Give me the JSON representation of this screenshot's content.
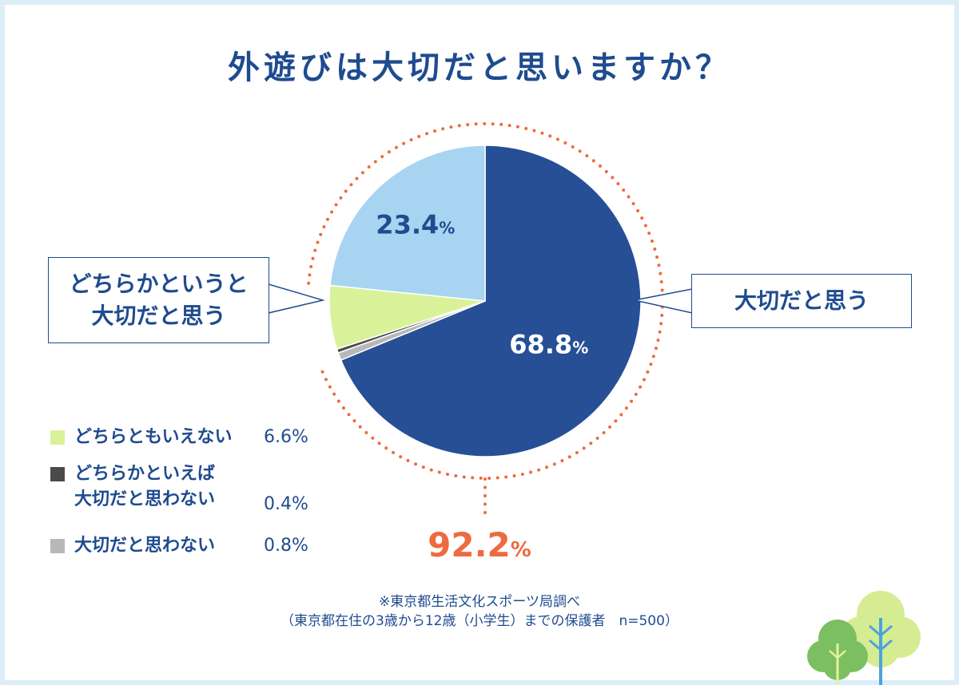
{
  "title": "外遊びは大切だと思いますか？",
  "callouts": {
    "left_line1": "どちらかというと",
    "left_line2": "大切だと思う",
    "right": "大切だと思う"
  },
  "total_label": "92.2",
  "percent_sign": "%",
  "colors": {
    "title": "#1f4b8f",
    "dotted_ring": "#ee6a3f",
    "total": "#ee6a3f"
  },
  "legend": [
    {
      "label": "どちらともいえない",
      "value": "6.6%",
      "color": "#d9f29a"
    },
    {
      "label_line1": "どちらかといえば",
      "label_line2": "大切だと思わない",
      "value": "0.4%",
      "color": "#4a4a4a"
    },
    {
      "label": "大切だと思わない",
      "value": "0.8%",
      "color": "#b8b8b8"
    }
  ],
  "source": {
    "line1": "※東京都生活文化スポーツ局調べ",
    "line2": "（東京都在住の3歳から12歳（小学生）までの保護者　n=500）"
  },
  "chart_data": {
    "type": "pie",
    "title": "外遊びは大切だと思いますか？",
    "slices": [
      {
        "label": "大切だと思う",
        "value": 68.8,
        "color": "#264f96",
        "data_label": "68.8"
      },
      {
        "label": "大切だと思わない",
        "value": 0.8,
        "color": "#b8b8b8",
        "data_label": ""
      },
      {
        "label": "どちらかといえば大切だと思わない",
        "value": 0.4,
        "color": "#4a4a4a",
        "data_label": ""
      },
      {
        "label": "どちらともいえない",
        "value": 6.6,
        "color": "#d9f29a",
        "data_label": ""
      },
      {
        "label": "どちらかというと大切だと思う",
        "value": 23.4,
        "color": "#a7d4f1",
        "data_label": "23.4"
      }
    ],
    "annotation": {
      "text": "92.2%",
      "covers": [
        "大切だと思う",
        "どちらかというと大切だと思う"
      ]
    }
  }
}
